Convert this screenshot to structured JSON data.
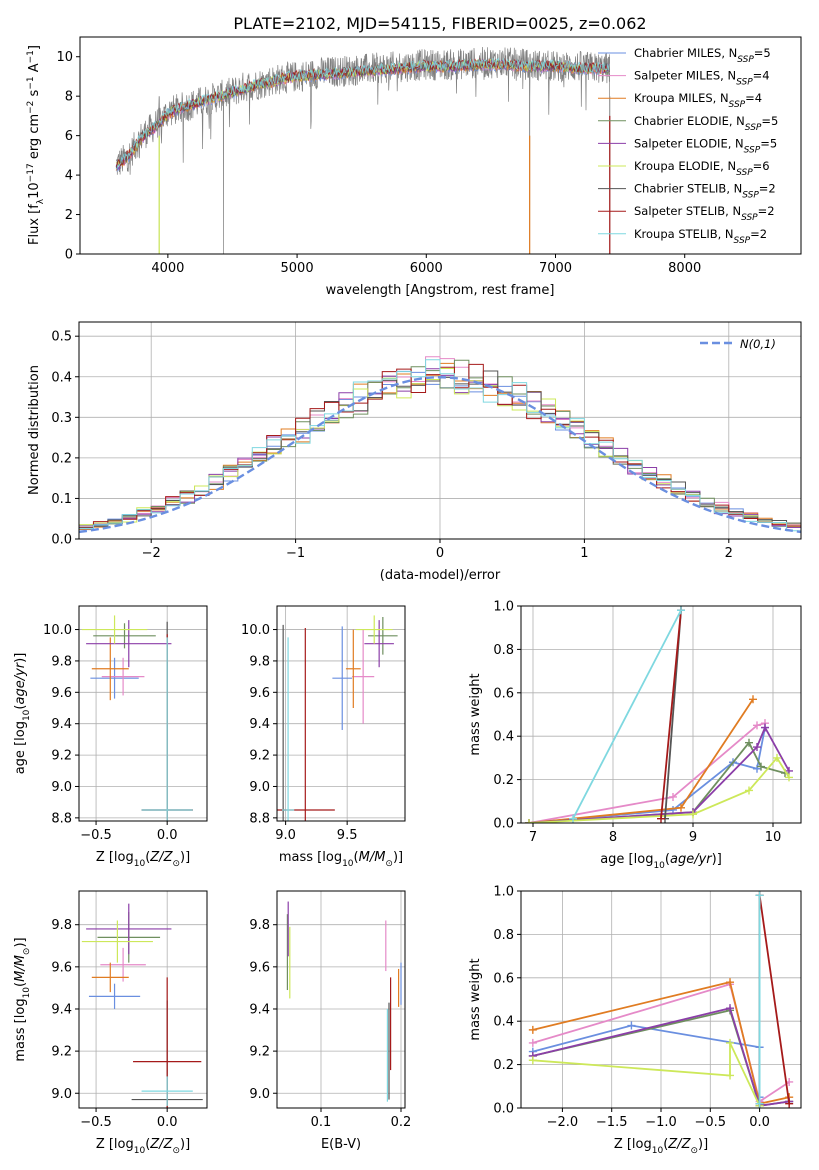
{
  "colors": {
    "Chabrier MILES": "#6a8fe0",
    "Salpeter MILES": "#e58ac8",
    "Kroupa MILES": "#e07c22",
    "Chabrier ELODIE": "#6f8f5f",
    "Salpeter ELODIE": "#8b3ea8",
    "Kroupa ELODIE": "#cde85a",
    "Chabrier STELIB": "#555555",
    "Salpeter STELIB": "#a51a1a",
    "Kroupa STELIB": "#7fd8e0"
  },
  "chart_data": [
    {
      "id": "spectrum",
      "type": "line",
      "title": "PLATE=2102, MJD=54115, FIBERID=0025, z=0.062",
      "xlabel": "wavelength [Angstrom, rest frame]",
      "ylabel": "Flux [f_λ10^-17 erg cm^-2 s^-1 A^-1]",
      "xlim": [
        3320,
        8900
      ],
      "ylim": [
        0,
        11
      ],
      "xticks": [
        4000,
        5000,
        6000,
        7000,
        8000
      ],
      "yticks": [
        0,
        2,
        4,
        6,
        8,
        10
      ],
      "legend_position": "right",
      "legend": [
        "Chabrier MILES, N_SSP=5",
        "Salpeter MILES, N_SSP=4",
        "Kroupa MILES, N_SSP=4",
        "Chabrier ELODIE, N_SSP=5",
        "Salpeter ELODIE, N_SSP=5",
        "Kroupa ELODIE, N_SSP=6",
        "Chabrier STELIB, N_SSP=2",
        "Salpeter STELIB, N_SSP=2",
        "Kroupa STELIB, N_SSP=2"
      ],
      "data_series": {
        "name": "data",
        "color": "#808080",
        "x": [
          3600,
          3700,
          3800,
          3900,
          4000,
          4100,
          4200,
          4300,
          4400,
          4500,
          4600,
          4700,
          4800,
          4900,
          5000,
          5200,
          5400,
          5600,
          5800,
          6000,
          6200,
          6400,
          6600,
          6800,
          7000,
          7200,
          7400
        ],
        "y": [
          4.5,
          5.0,
          6.0,
          6.5,
          7.2,
          7.4,
          7.6,
          7.8,
          8.0,
          8.2,
          8.5,
          8.6,
          8.8,
          8.9,
          9.0,
          9.2,
          9.3,
          9.4,
          9.5,
          9.6,
          9.6,
          9.7,
          9.7,
          9.6,
          9.5,
          9.5,
          9.4
        ]
      },
      "model_series": {
        "x": [
          3600,
          3700,
          3800,
          3900,
          4000,
          4100,
          4200,
          4300,
          4400,
          4500,
          4600,
          4700,
          4800,
          4900,
          5000,
          5200,
          5400,
          5600,
          5800,
          6000,
          6200,
          6400,
          6600,
          6800,
          7000,
          7200,
          7400
        ],
        "y": [
          4.4,
          5.0,
          5.9,
          6.4,
          7.1,
          7.4,
          7.6,
          7.8,
          8.0,
          8.2,
          8.4,
          8.6,
          8.7,
          8.9,
          9.0,
          9.1,
          9.2,
          9.3,
          9.4,
          9.5,
          9.5,
          9.6,
          9.6,
          9.5,
          9.5,
          9.4,
          9.4
        ]
      },
      "absorption_drops_x": [
        3933,
        4430,
        6800,
        7420
      ]
    },
    {
      "id": "residuals",
      "type": "histogram",
      "xlabel": "(data-model)/error",
      "ylabel": "Normed distribution",
      "xlim": [
        -2.5,
        2.5
      ],
      "ylim": [
        0,
        0.535
      ],
      "xticks": [
        -2,
        -1,
        0,
        1,
        2
      ],
      "xticklabels": [
        "−2",
        "−1",
        "0",
        "1",
        "2"
      ],
      "yticks": [
        0,
        0.1,
        0.2,
        0.3,
        0.4,
        0.5
      ],
      "yticklabels": [
        "0.0",
        "0.1",
        "0.2",
        "0.3",
        "0.4",
        "0.5"
      ],
      "bins": {
        "start": -2.5,
        "width": 0.1,
        "count": 50
      },
      "gaussian_legend": "N(0,1)",
      "gaussian_color": "#6a8fe0",
      "legend_position": "top-right"
    },
    {
      "id": "age-vs-Z",
      "type": "errorbar",
      "xlabel": "Z [log10(Z/Z⊙)]",
      "ylabel": "age [log10(age/yr)]",
      "xlim": [
        -0.62,
        0.28
      ],
      "ylim": [
        8.78,
        10.15
      ],
      "xticks": [
        -0.5,
        0.0
      ],
      "xticklabels": [
        "−0.5",
        "0.0"
      ],
      "yticks": [
        8.8,
        9.0,
        9.2,
        9.4,
        9.6,
        9.8,
        10.0
      ],
      "yticklabels": [
        "8.8",
        "9.0",
        "9.2",
        "9.4",
        "9.6",
        "9.8",
        "10.0"
      ],
      "points": [
        {
          "model": "Chabrier MILES",
          "x": -0.37,
          "xerr": 0.17,
          "y": 9.69,
          "yerr": 0.13
        },
        {
          "model": "Salpeter MILES",
          "x": -0.31,
          "xerr": 0.15,
          "y": 9.7,
          "yerr": 0.12
        },
        {
          "model": "Kroupa MILES",
          "x": -0.4,
          "xerr": 0.13,
          "y": 9.75,
          "yerr": 0.2
        },
        {
          "model": "Chabrier ELODIE",
          "x": -0.3,
          "xerr": 0.22,
          "y": 9.96,
          "yerr": 0.08
        },
        {
          "model": "Salpeter ELODIE",
          "x": -0.27,
          "xerr": 0.3,
          "y": 9.91,
          "yerr": 0.15
        },
        {
          "model": "Kroupa ELODIE",
          "x": -0.37,
          "xerr": 0.23,
          "y": 10.0,
          "yerr": 0.09
        },
        {
          "model": "Chabrier STELIB",
          "x": 0.0,
          "xerr": 0.18,
          "y": 8.85,
          "yerr": 1.2
        },
        {
          "model": "Salpeter STELIB",
          "x": 0.0,
          "xerr": 0.18,
          "y": 8.85,
          "yerr": 1.12
        },
        {
          "model": "Kroupa STELIB",
          "x": 0.0,
          "xerr": 0.18,
          "y": 8.85,
          "yerr": 1.1
        }
      ]
    },
    {
      "id": "age-vs-mass",
      "type": "errorbar",
      "xlabel": "mass [log10(M/M⊙)]",
      "ylabel": "",
      "xlim": [
        8.93,
        9.97
      ],
      "ylim": [
        8.78,
        10.15
      ],
      "xticks": [
        9.0,
        9.5
      ],
      "xticklabels": [
        "9.0",
        "9.5"
      ],
      "yticks": [
        8.8,
        9.0,
        9.2,
        9.4,
        9.6,
        9.8,
        10.0
      ],
      "yticklabels": [
        "8.8",
        "9.0",
        "9.2",
        "9.4",
        "9.6",
        "9.8",
        "10.0"
      ],
      "points": [
        {
          "model": "Chabrier MILES",
          "x": 9.46,
          "xerr": 0.08,
          "y": 9.69,
          "yerr": 0.33
        },
        {
          "model": "Salpeter MILES",
          "x": 9.63,
          "xerr": 0.09,
          "y": 9.7,
          "yerr": 0.3
        },
        {
          "model": "Kroupa MILES",
          "x": 9.55,
          "xerr": 0.06,
          "y": 9.75,
          "yerr": 0.25
        },
        {
          "model": "Chabrier ELODIE",
          "x": 9.79,
          "xerr": 0.12,
          "y": 9.96,
          "yerr": 0.12
        },
        {
          "model": "Salpeter ELODIE",
          "x": 9.76,
          "xerr": 0.12,
          "y": 9.91,
          "yerr": 0.15
        },
        {
          "model": "Kroupa ELODIE",
          "x": 9.72,
          "xerr": 0.15,
          "y": 10.0,
          "yerr": 0.09
        },
        {
          "model": "Chabrier STELIB",
          "x": 8.98,
          "xerr": 0.02,
          "y": 8.85,
          "yerr": 1.18
        },
        {
          "model": "Salpeter STELIB",
          "x": 9.16,
          "xerr": 0.24,
          "y": 8.85,
          "yerr": 1.16
        },
        {
          "model": "Kroupa STELIB",
          "x": 9.02,
          "xerr": 0.05,
          "y": 8.85,
          "yerr": 1.1
        }
      ]
    },
    {
      "id": "massweight-vs-age",
      "type": "line",
      "xlabel": "age [log10(age/yr)]",
      "ylabel": "mass weight",
      "xlim": [
        6.85,
        10.35
      ],
      "ylim": [
        0,
        1.0
      ],
      "xticks": [
        7,
        8,
        9,
        10
      ],
      "yticks": [
        0.0,
        0.2,
        0.4,
        0.6,
        0.8,
        1.0
      ],
      "yticklabels": [
        "0.0",
        "0.2",
        "0.4",
        "0.6",
        "0.8",
        "1.0"
      ],
      "series": [
        {
          "model": "Chabrier MILES",
          "x": [
            6.95,
            8.75,
            9.5,
            9.8,
            9.9
          ],
          "y": [
            0.0,
            0.06,
            0.28,
            0.25,
            0.44
          ]
        },
        {
          "model": "Salpeter MILES",
          "x": [
            6.95,
            8.75,
            9.8,
            9.9
          ],
          "y": [
            0.0,
            0.12,
            0.45,
            0.46
          ]
        },
        {
          "model": "Kroupa MILES",
          "x": [
            6.95,
            8.85,
            9.75
          ],
          "y": [
            0.0,
            0.07,
            0.57
          ]
        },
        {
          "model": "Chabrier ELODIE",
          "x": [
            6.95,
            9.0,
            9.7,
            9.85,
            10.15
          ],
          "y": [
            0.0,
            0.05,
            0.37,
            0.26,
            0.23
          ]
        },
        {
          "model": "Salpeter ELODIE",
          "x": [
            6.95,
            9.0,
            9.8,
            9.9,
            10.2
          ],
          "y": [
            0.0,
            0.05,
            0.35,
            0.44,
            0.24
          ]
        },
        {
          "model": "Kroupa ELODIE",
          "x": [
            6.95,
            9.0,
            9.7,
            10.05,
            10.2
          ],
          "y": [
            0.0,
            0.04,
            0.15,
            0.3,
            0.21
          ]
        },
        {
          "model": "Chabrier STELIB",
          "x": [
            8.65,
            8.85
          ],
          "y": [
            0.02,
            0.98
          ]
        },
        {
          "model": "Salpeter STELIB",
          "x": [
            8.6,
            8.85
          ],
          "y": [
            0.02,
            0.98
          ]
        },
        {
          "model": "Kroupa STELIB",
          "x": [
            7.5,
            8.85
          ],
          "y": [
            0.02,
            0.98
          ]
        }
      ]
    },
    {
      "id": "mass-vs-Z",
      "type": "errorbar",
      "xlabel": "Z [log10(Z/Z⊙)]",
      "ylabel": "mass [log10(M/M⊙)]",
      "xlim": [
        -0.62,
        0.28
      ],
      "ylim": [
        8.93,
        9.96
      ],
      "xticks": [
        -0.5,
        0.0
      ],
      "xticklabels": [
        "−0.5",
        "0.0"
      ],
      "yticks": [
        9.0,
        9.2,
        9.4,
        9.6,
        9.8
      ],
      "yticklabels": [
        "9.0",
        "9.2",
        "9.4",
        "9.6",
        "9.8"
      ],
      "points": [
        {
          "model": "Chabrier MILES",
          "x": -0.37,
          "xerr": 0.18,
          "y": 9.46,
          "yerr": 0.06
        },
        {
          "model": "Salpeter MILES",
          "x": -0.31,
          "xerr": 0.16,
          "y": 9.61,
          "yerr": 0.08
        },
        {
          "model": "Kroupa MILES",
          "x": -0.4,
          "xerr": 0.13,
          "y": 9.55,
          "yerr": 0.07
        },
        {
          "model": "Chabrier ELODIE",
          "x": -0.27,
          "xerr": 0.22,
          "y": 9.74,
          "yerr": 0.12
        },
        {
          "model": "Salpeter ELODIE",
          "x": -0.27,
          "xerr": 0.3,
          "y": 9.78,
          "yerr": 0.12
        },
        {
          "model": "Kroupa ELODIE",
          "x": -0.35,
          "xerr": 0.25,
          "y": 9.72,
          "yerr": 0.1
        },
        {
          "model": "Chabrier STELIB",
          "x": 0.0,
          "xerr": 0.25,
          "y": 8.97,
          "yerr": 0.47
        },
        {
          "model": "Salpeter STELIB",
          "x": 0.0,
          "xerr": 0.24,
          "y": 9.15,
          "yerr": 0.4
        },
        {
          "model": "Kroupa STELIB",
          "x": 0.0,
          "xerr": 0.18,
          "y": 9.01,
          "yerr": 0.07
        }
      ]
    },
    {
      "id": "mass-vs-EBV",
      "type": "errorbar",
      "xlabel": "E(B-V)",
      "ylabel": "",
      "xlim": [
        0.045,
        0.205
      ],
      "ylim": [
        8.93,
        9.96
      ],
      "xticks": [
        0.1,
        0.2
      ],
      "xticklabels": [
        "0.1",
        "0.2"
      ],
      "yticks": [
        9.0,
        9.2,
        9.4,
        9.6,
        9.8
      ],
      "yticklabels": [
        "9.0",
        "9.2",
        "9.4",
        "9.6",
        "9.8"
      ],
      "points": [
        {
          "model": "Chabrier MILES",
          "x": 0.2,
          "xerr": 0,
          "y": 9.52,
          "yerr": 0.1
        },
        {
          "model": "Salpeter MILES",
          "x": 0.181,
          "xerr": 0,
          "y": 9.7,
          "yerr": 0.12
        },
        {
          "model": "Kroupa MILES",
          "x": 0.197,
          "xerr": 0,
          "y": 9.5,
          "yerr": 0.09
        },
        {
          "model": "Chabrier ELODIE",
          "x": 0.058,
          "xerr": 0,
          "y": 9.67,
          "yerr": 0.18
        },
        {
          "model": "Salpeter ELODIE",
          "x": 0.059,
          "xerr": 0,
          "y": 9.78,
          "yerr": 0.13
        },
        {
          "model": "Kroupa ELODIE",
          "x": 0.061,
          "xerr": 0,
          "y": 9.62,
          "yerr": 0.17
        },
        {
          "model": "Chabrier STELIB",
          "x": 0.185,
          "xerr": 0,
          "y": 9.2,
          "yerr": 0.23
        },
        {
          "model": "Salpeter STELIB",
          "x": 0.187,
          "xerr": 0,
          "y": 9.33,
          "yerr": 0.22
        },
        {
          "model": "Kroupa STELIB",
          "x": 0.183,
          "xerr": 0,
          "y": 9.18,
          "yerr": 0.22
        }
      ]
    },
    {
      "id": "massweight-vs-Z",
      "type": "line",
      "xlabel": "Z [log10(Z/Z⊙)]",
      "ylabel": "mass weight",
      "xlim": [
        -2.42,
        0.42
      ],
      "ylim": [
        0,
        1.0
      ],
      "xticks": [
        -2.0,
        -1.5,
        -1.0,
        -0.5,
        0.0
      ],
      "xticklabels": [
        "−2.0",
        "−1.5",
        "−1.0",
        "−0.5",
        "0.0"
      ],
      "yticks": [
        0.0,
        0.2,
        0.4,
        0.6,
        0.8,
        1.0
      ],
      "yticklabels": [
        "0.0",
        "0.2",
        "0.4",
        "0.6",
        "0.8",
        "1.0"
      ],
      "series": [
        {
          "model": "Chabrier MILES",
          "x": [
            -2.3,
            -1.3,
            0.0,
            0.0
          ],
          "y": [
            0.26,
            0.38,
            0.28,
            0.05
          ]
        },
        {
          "model": "Salpeter MILES",
          "x": [
            -2.3,
            -0.3,
            0.0,
            0.3
          ],
          "y": [
            0.3,
            0.57,
            0.03,
            0.12
          ]
        },
        {
          "model": "Kroupa MILES",
          "x": [
            -2.3,
            -0.3,
            0.0,
            0.3
          ],
          "y": [
            0.36,
            0.58,
            0.02,
            0.05
          ]
        },
        {
          "model": "Chabrier ELODIE",
          "x": [
            -2.3,
            -0.3,
            0.0,
            0.3
          ],
          "y": [
            0.24,
            0.45,
            0.01,
            0.03
          ]
        },
        {
          "model": "Salpeter ELODIE",
          "x": [
            -2.3,
            -0.3,
            0.0,
            0.3
          ],
          "y": [
            0.24,
            0.46,
            0.01,
            0.03
          ]
        },
        {
          "model": "Kroupa ELODIE",
          "x": [
            -2.3,
            -0.3,
            -0.3,
            0.0
          ],
          "y": [
            0.22,
            0.15,
            0.3,
            0.01
          ]
        },
        {
          "model": "Chabrier STELIB",
          "x": [
            0.0,
            0.0
          ],
          "y": [
            0.02,
            0.98
          ]
        },
        {
          "model": "Salpeter STELIB",
          "x": [
            0.0,
            0.3
          ],
          "y": [
            0.98,
            0.02
          ]
        },
        {
          "model": "Kroupa STELIB",
          "x": [
            0.0,
            0.0
          ],
          "y": [
            0.02,
            0.98
          ]
        }
      ]
    }
  ]
}
